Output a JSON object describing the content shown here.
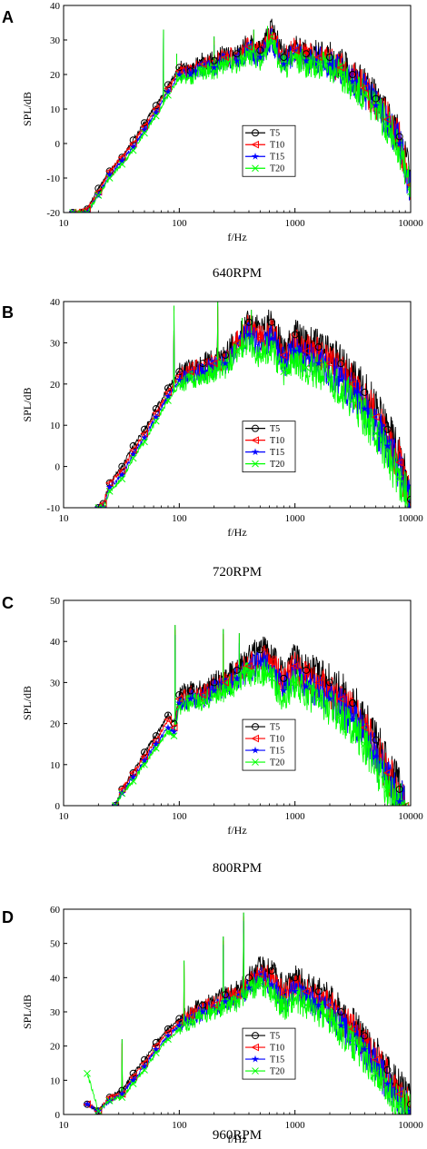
{
  "series_colors": {
    "T5": "#000000",
    "T10": "#ff0000",
    "T15": "#0000ff",
    "T20": "#00ff00"
  },
  "series_markers": {
    "T5": "circle",
    "T10": "triangle-left",
    "T15": "star",
    "T20": "x"
  },
  "chart_data": [
    {
      "panel": "A",
      "type": "line",
      "caption": "640RPM",
      "xlabel": "f/Hz",
      "ylabel": "SPL/dB",
      "xscale": "log",
      "xlim": [
        10,
        10000
      ],
      "ylim": [
        -20,
        40
      ],
      "xticks": [
        10,
        100,
        1000,
        10000
      ],
      "xtick_labels": [
        "10",
        "100",
        "1000",
        "10000"
      ],
      "yticks": [
        -20,
        -10,
        0,
        10,
        20,
        30,
        40
      ],
      "ytick_labels": [
        "-20",
        "-10",
        "0",
        "10",
        "20",
        "30",
        "40"
      ],
      "legend": "center-right",
      "x": [
        12,
        16,
        20,
        25,
        32,
        40,
        50,
        63,
        80,
        100,
        125,
        160,
        200,
        250,
        315,
        400,
        500,
        630,
        800,
        1000,
        1250,
        1600,
        2000,
        2500,
        3150,
        4000,
        5000,
        6300,
        8000,
        10000
      ],
      "series": [
        {
          "name": "T5",
          "values": [
            -20,
            -19,
            -13,
            -8,
            -4,
            1,
            6,
            11,
            17,
            22,
            21,
            24,
            24,
            26,
            26,
            29,
            27,
            33,
            25,
            28,
            26,
            26,
            25,
            23,
            20,
            17,
            13,
            8,
            2,
            -11
          ]
        },
        {
          "name": "T10",
          "values": [
            -20,
            -19,
            -14,
            -8,
            -4,
            0,
            5,
            10,
            16,
            21,
            21,
            23,
            23,
            25,
            25,
            28,
            26,
            31,
            24,
            27,
            25,
            25,
            24,
            22,
            19,
            16,
            12,
            7,
            1,
            -12
          ]
        },
        {
          "name": "T15",
          "values": [
            -20,
            -20,
            -15,
            -9,
            -5,
            -1,
            4,
            9,
            15,
            20,
            20,
            22,
            22,
            24,
            24,
            27,
            25,
            30,
            23,
            26,
            24,
            24,
            23,
            21,
            18,
            15,
            11,
            6,
            0,
            -13
          ]
        },
        {
          "name": "T20",
          "values": [
            -20,
            -20,
            -15,
            -10,
            -6,
            -2,
            3,
            8,
            14,
            19,
            19,
            21,
            21,
            23,
            23,
            26,
            24,
            29,
            22,
            25,
            23,
            23,
            22,
            20,
            17,
            14,
            10,
            5,
            -1,
            -14
          ]
        }
      ],
      "peaks": [
        {
          "x": 73,
          "y": 33
        },
        {
          "x": 95,
          "y": 26
        },
        {
          "x": 200,
          "y": 31
        },
        {
          "x": 440,
          "y": 33
        },
        {
          "x": 580,
          "y": 34
        }
      ]
    },
    {
      "panel": "B",
      "type": "line",
      "caption": "720RPM",
      "xlabel": "f/Hz",
      "ylabel": "SPL/dB",
      "xscale": "log",
      "xlim": [
        10,
        10000
      ],
      "ylim": [
        -10,
        40
      ],
      "xticks": [
        10,
        100,
        1000,
        10000
      ],
      "xtick_labels": [
        "10",
        "100",
        "1000",
        "10000"
      ],
      "yticks": [
        -10,
        0,
        10,
        20,
        30,
        40
      ],
      "ytick_labels": [
        "-10",
        "0",
        "10",
        "20",
        "30",
        "40"
      ],
      "legend": "center-right",
      "x": [
        20,
        22,
        25,
        32,
        40,
        50,
        63,
        80,
        100,
        125,
        160,
        200,
        250,
        315,
        400,
        500,
        630,
        800,
        1000,
        1250,
        1600,
        2000,
        2500,
        3150,
        4000,
        5000,
        6300,
        8000,
        10000
      ],
      "series": [
        {
          "name": "T5",
          "values": [
            -10,
            -9,
            -4,
            0,
            5,
            9,
            14,
            19,
            23,
            24,
            25,
            26,
            27,
            31,
            35,
            33,
            35,
            28,
            32,
            30,
            29,
            27,
            25,
            22,
            18,
            14,
            9,
            3,
            -8
          ]
        },
        {
          "name": "T10",
          "values": [
            -10,
            -9,
            -4,
            -1,
            4,
            8,
            13,
            18,
            22,
            23,
            24,
            25,
            26,
            30,
            34,
            31,
            33,
            27,
            30,
            28,
            27,
            25,
            23,
            20,
            16,
            12,
            7,
            1,
            -9
          ]
        },
        {
          "name": "T15",
          "values": [
            -10,
            -10,
            -5,
            -2,
            3,
            7,
            12,
            17,
            21,
            22,
            23,
            24,
            25,
            29,
            32,
            29,
            31,
            25,
            28,
            26,
            25,
            23,
            21,
            18,
            14,
            10,
            5,
            -1,
            -10
          ]
        },
        {
          "name": "T20",
          "values": [
            -10,
            -10,
            -6,
            -3,
            2,
            6,
            11,
            16,
            20,
            21,
            22,
            23,
            24,
            28,
            30,
            27,
            29,
            23,
            26,
            24,
            23,
            21,
            19,
            16,
            12,
            8,
            3,
            -3,
            -10
          ]
        }
      ],
      "peaks": [
        {
          "x": 90,
          "y": 39
        },
        {
          "x": 215,
          "y": 40
        },
        {
          "x": 350,
          "y": 36
        },
        {
          "x": 420,
          "y": 38
        }
      ]
    },
    {
      "panel": "C",
      "type": "line",
      "caption": "800RPM",
      "xlabel": "f/Hz",
      "ylabel": "SPL/dB",
      "xscale": "log",
      "xlim": [
        10,
        10000
      ],
      "ylim": [
        0,
        50
      ],
      "xticks": [
        10,
        100,
        1000,
        10000
      ],
      "xtick_labels": [
        "10",
        "100",
        "1000",
        "10000"
      ],
      "yticks": [
        0,
        10,
        20,
        30,
        40,
        50
      ],
      "ytick_labels": [
        "0",
        "10",
        "20",
        "30",
        "40",
        "50"
      ],
      "legend": "center-right",
      "x": [
        28,
        32,
        40,
        50,
        63,
        80,
        90,
        100,
        125,
        160,
        200,
        250,
        315,
        400,
        500,
        630,
        800,
        1000,
        1250,
        1600,
        2000,
        2500,
        3150,
        4000,
        5000,
        6300,
        8000,
        9000
      ],
      "series": [
        {
          "name": "T5",
          "values": [
            0,
            4,
            8,
            13,
            17,
            22,
            20,
            27,
            28,
            28,
            30,
            31,
            33,
            36,
            38,
            37,
            31,
            36,
            33,
            32,
            30,
            28,
            25,
            21,
            16,
            10,
            4,
            0
          ]
        },
        {
          "name": "T10",
          "values": [
            0,
            4,
            8,
            12,
            16,
            21,
            19,
            26,
            27,
            27,
            29,
            30,
            32,
            34,
            36,
            35,
            30,
            34,
            31,
            30,
            28,
            26,
            23,
            19,
            14,
            8,
            2,
            0
          ]
        },
        {
          "name": "T15",
          "values": [
            0,
            3,
            7,
            11,
            15,
            19,
            18,
            25,
            26,
            26,
            28,
            29,
            31,
            33,
            35,
            33,
            28,
            32,
            29,
            28,
            26,
            24,
            21,
            17,
            12,
            6,
            1,
            0
          ]
        },
        {
          "name": "T20",
          "values": [
            0,
            3,
            6,
            10,
            14,
            18,
            17,
            24,
            25,
            25,
            27,
            28,
            30,
            32,
            33,
            31,
            26,
            30,
            27,
            26,
            24,
            22,
            19,
            15,
            10,
            4,
            0,
            0
          ]
        }
      ],
      "peaks": [
        {
          "x": 92,
          "y": 44
        },
        {
          "x": 240,
          "y": 43
        },
        {
          "x": 330,
          "y": 42
        }
      ]
    },
    {
      "panel": "D",
      "type": "line",
      "caption": "960RPM",
      "xlabel": "f/Hz",
      "ylabel": "SPL/dB",
      "xscale": "log",
      "xlim": [
        10,
        10000
      ],
      "ylim": [
        0,
        60
      ],
      "xticks": [
        10,
        100,
        1000,
        10000
      ],
      "xtick_labels": [
        "10",
        "100",
        "1000",
        "10000"
      ],
      "yticks": [
        0,
        10,
        20,
        30,
        40,
        50,
        60
      ],
      "ytick_labels": [
        "0",
        "10",
        "20",
        "30",
        "40",
        "50",
        "60"
      ],
      "legend": "center-right",
      "x": [
        16,
        20,
        25,
        32,
        40,
        50,
        63,
        80,
        100,
        125,
        160,
        200,
        250,
        315,
        400,
        500,
        630,
        800,
        1000,
        1250,
        1600,
        2000,
        2500,
        3150,
        4000,
        5000,
        6300,
        8000,
        10000
      ],
      "series": [
        {
          "name": "T5",
          "values": [
            3,
            1,
            5,
            7,
            12,
            16,
            21,
            25,
            28,
            30,
            32,
            33,
            35,
            36,
            40,
            43,
            42,
            37,
            40,
            38,
            36,
            34,
            30,
            27,
            23,
            18,
            13,
            8,
            3
          ]
        },
        {
          "name": "T10",
          "values": [
            3,
            1,
            5,
            6,
            11,
            15,
            20,
            24,
            27,
            29,
            31,
            32,
            34,
            35,
            38,
            41,
            40,
            35,
            38,
            36,
            34,
            32,
            28,
            25,
            21,
            16,
            11,
            6,
            2
          ]
        },
        {
          "name": "T15",
          "values": [
            3,
            1,
            4,
            6,
            10,
            14,
            19,
            23,
            26,
            28,
            30,
            31,
            33,
            34,
            37,
            40,
            38,
            33,
            36,
            34,
            32,
            30,
            26,
            23,
            19,
            14,
            9,
            4,
            1
          ]
        },
        {
          "name": "T20",
          "values": [
            12,
            1,
            4,
            5,
            9,
            13,
            18,
            22,
            25,
            27,
            29,
            30,
            32,
            33,
            36,
            38,
            36,
            31,
            34,
            32,
            30,
            28,
            24,
            21,
            17,
            12,
            7,
            3,
            0
          ]
        }
      ],
      "peaks": [
        {
          "x": 110,
          "y": 45
        },
        {
          "x": 240,
          "y": 52
        },
        {
          "x": 360,
          "y": 59
        },
        {
          "x": 32,
          "y": 22
        }
      ]
    }
  ]
}
